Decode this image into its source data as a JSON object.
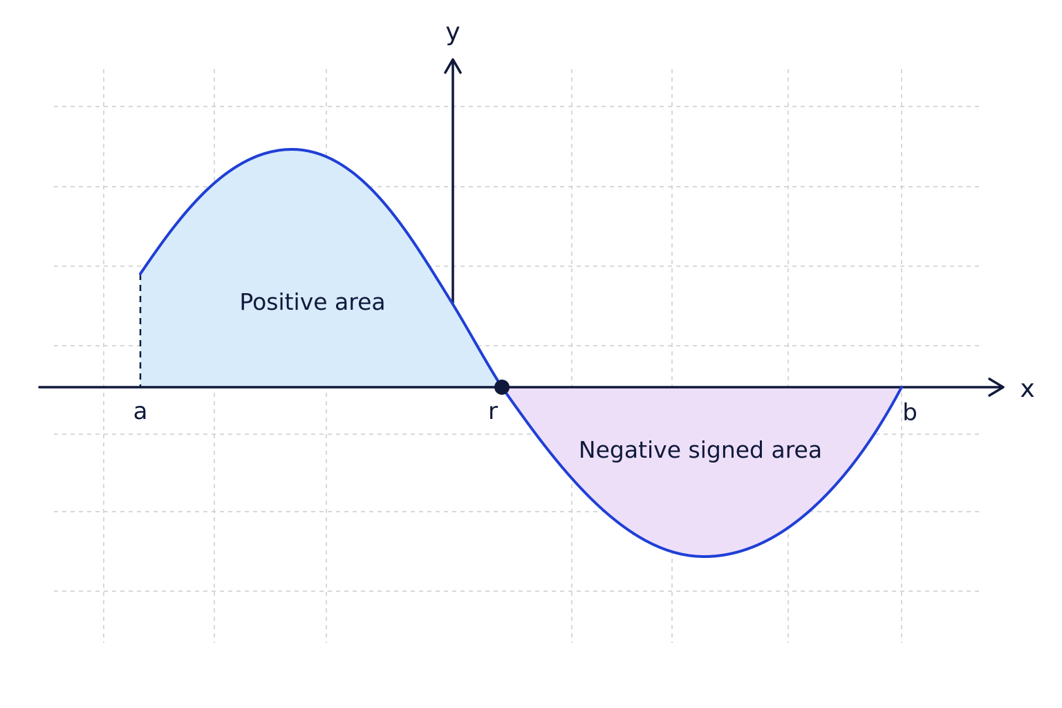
{
  "axes": {
    "x_label": "x",
    "y_label": "y"
  },
  "points": {
    "a": "a",
    "r": "r",
    "b": "b"
  },
  "regions": {
    "positive_label": "Positive area",
    "negative_label": "Negative signed area"
  },
  "colors": {
    "positive_fill": "#d8ebfb",
    "negative_fill": "#eedff9",
    "curve": "#1f3fd6",
    "axis": "#10193a",
    "grid": "#c9ccd2"
  }
}
